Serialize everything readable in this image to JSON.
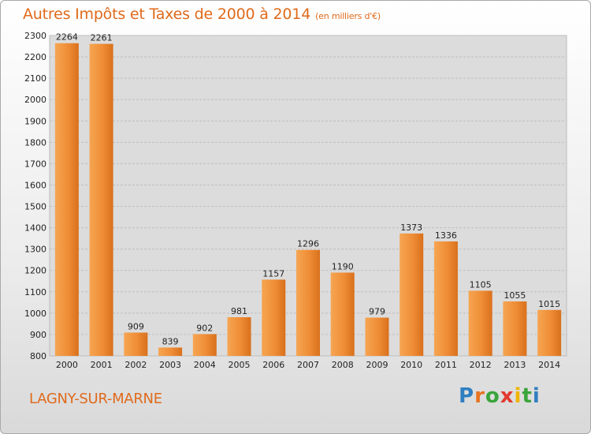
{
  "header": {
    "title": "Autres Impôts et Taxes de 2000 à 2014",
    "subtitle": "(en milliers d'€)"
  },
  "footer": {
    "city": "LAGNY-SUR-MARNE",
    "logo_letters": [
      "P",
      "r",
      "o",
      "x",
      "i",
      "t",
      "i"
    ],
    "logo_colors": [
      "#2f7fc1",
      "#e8731f",
      "#3aa53a",
      "#e03a2f",
      "#f0b400",
      "#3aa53a",
      "#2f7fc1"
    ]
  },
  "chart_data": {
    "type": "bar",
    "categories": [
      "2000",
      "2001",
      "2002",
      "2003",
      "2004",
      "2005",
      "2006",
      "2007",
      "2008",
      "2009",
      "2010",
      "2011",
      "2012",
      "2013",
      "2014"
    ],
    "values": [
      2264,
      2261,
      909,
      839,
      902,
      981,
      1157,
      1296,
      1190,
      979,
      1373,
      1336,
      1105,
      1055,
      1015
    ],
    "ylim": [
      800,
      2300
    ],
    "yticks": [
      800,
      900,
      1000,
      1100,
      1200,
      1300,
      1400,
      1500,
      1600,
      1700,
      1800,
      1900,
      2000,
      2100,
      2200,
      2300
    ],
    "grid": true,
    "bar_color": "#f0913a",
    "bar_color_dark": "#d9701c"
  }
}
